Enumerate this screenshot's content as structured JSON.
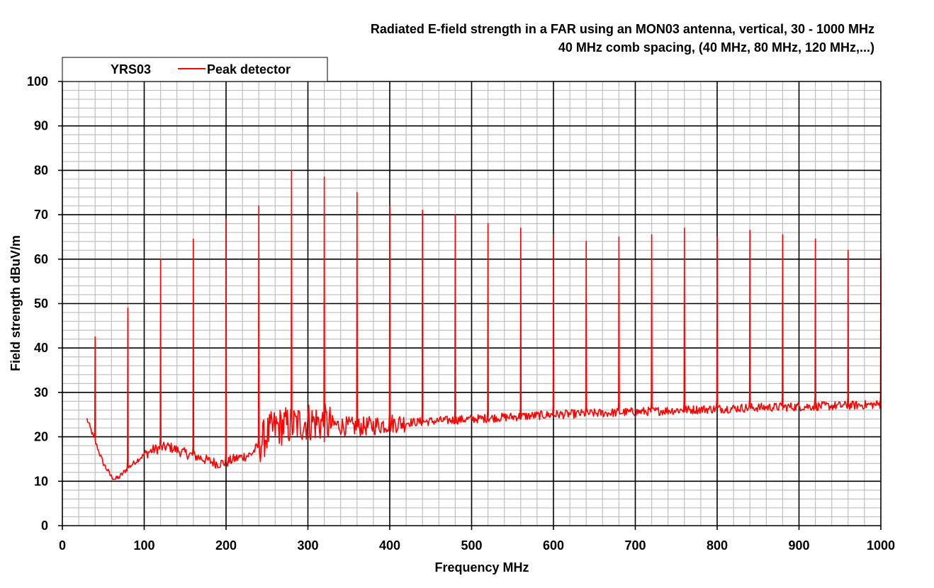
{
  "chart_data": {
    "type": "line",
    "title": "Radiated  E-field strength  in a FAR using an MON03 antenna,  vertical,  30 - 1000 MHz",
    "subtitle": "40 MHz comb spacing,  (40 MHz, 80 MHz, 120 MHz,...)",
    "xlabel": "Frequency  MHz",
    "ylabel": "Field strength  dBuV/m",
    "xlim": [
      0,
      1000
    ],
    "ylim": [
      0,
      100
    ],
    "x_ticks": [
      "0",
      "100",
      "200",
      "300",
      "400",
      "500",
      "600",
      "700",
      "800",
      "900",
      "1000"
    ],
    "y_ticks": [
      "0",
      "10",
      "20",
      "30",
      "40",
      "50",
      "60",
      "70",
      "80",
      "90",
      "100"
    ],
    "grid": "major and minor",
    "legend": {
      "label": "YRS03",
      "placement": "top-left"
    },
    "colors": {
      "series": "#ff0000",
      "major_grid": "#000000",
      "minor_grid": "#bfbfbf"
    },
    "series": [
      {
        "name": "Peak detector",
        "noise_floor": {
          "x": [
            30,
            40,
            50,
            60,
            65,
            70,
            80,
            90,
            100,
            110,
            120,
            130,
            140,
            150,
            160,
            170,
            180,
            190,
            200,
            210,
            220,
            230,
            240,
            250,
            260,
            270,
            280,
            290,
            300,
            320,
            340,
            360,
            380,
            400,
            450,
            500,
            550,
            600,
            650,
            700,
            750,
            800,
            850,
            900,
            950,
            1000
          ],
          "y": [
            24,
            19,
            14,
            11,
            10.5,
            11,
            13,
            14.5,
            16,
            17,
            17.5,
            17.8,
            17,
            16.3,
            15.8,
            15.2,
            14.5,
            14,
            14.2,
            15,
            15.5,
            16,
            18,
            20.5,
            22,
            22.5,
            22.5,
            23,
            23.5,
            23,
            22.5,
            22.2,
            22.5,
            23,
            23.5,
            24,
            24.5,
            25,
            25.3,
            25.6,
            26,
            26.3,
            26.6,
            26.8,
            27,
            27.3
          ]
        },
        "peaks": [
          {
            "x": 40,
            "y": 42.5
          },
          {
            "x": 80,
            "y": 49
          },
          {
            "x": 120,
            "y": 60
          },
          {
            "x": 160,
            "y": 64.5
          },
          {
            "x": 200,
            "y": 69
          },
          {
            "x": 240,
            "y": 72
          },
          {
            "x": 280,
            "y": 80
          },
          {
            "x": 320,
            "y": 78.5
          },
          {
            "x": 360,
            "y": 75
          },
          {
            "x": 400,
            "y": 72
          },
          {
            "x": 440,
            "y": 71
          },
          {
            "x": 480,
            "y": 70
          },
          {
            "x": 520,
            "y": 68
          },
          {
            "x": 560,
            "y": 67
          },
          {
            "x": 600,
            "y": 65.5
          },
          {
            "x": 640,
            "y": 64
          },
          {
            "x": 680,
            "y": 65
          },
          {
            "x": 720,
            "y": 65.5
          },
          {
            "x": 760,
            "y": 67
          },
          {
            "x": 800,
            "y": 65
          },
          {
            "x": 840,
            "y": 66.5
          },
          {
            "x": 880,
            "y": 65.5
          },
          {
            "x": 920,
            "y": 64.5
          },
          {
            "x": 960,
            "y": 62
          },
          {
            "x": 1000,
            "y": 61
          }
        ]
      }
    ]
  }
}
